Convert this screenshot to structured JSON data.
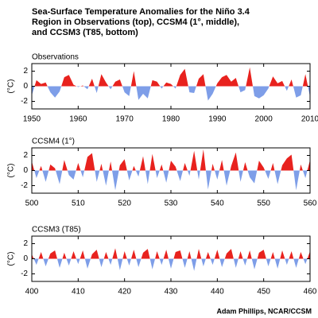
{
  "title": [
    "Sea-Surface Temperature Anomalies for the Niño 3.4",
    "Region in Observations (top), CCSM4 (1°, middle),",
    "and CCSM3 (T85, bottom)"
  ],
  "credit": "Adam Phillips, NCAR/CCSM",
  "chart_data": [
    {
      "type": "area",
      "subtitle": "Observations",
      "ylabel": "(°C)",
      "pos_color": "#e8221e",
      "neg_color": "#7e9ee8",
      "x": [
        1950,
        1951,
        1952,
        1953,
        1954,
        1955,
        1956,
        1957,
        1958,
        1959,
        1960,
        1961,
        1962,
        1963,
        1964,
        1965,
        1966,
        1967,
        1968,
        1969,
        1970,
        1971,
        1972,
        1973,
        1974,
        1975,
        1976,
        1977,
        1978,
        1979,
        1980,
        1981,
        1982,
        1983,
        1984,
        1985,
        1986,
        1987,
        1988,
        1989,
        1990,
        1991,
        1992,
        1993,
        1994,
        1995,
        1996,
        1997,
        1998,
        1999,
        2000,
        2001,
        2002,
        2003,
        2004,
        2005,
        2006,
        2007,
        2008,
        2009,
        2010
      ],
      "values": [
        -1.2,
        0.8,
        0.3,
        0.5,
        -0.8,
        -1.5,
        -0.7,
        1.2,
        1.5,
        0.2,
        -0.1,
        0.1,
        -0.4,
        1.0,
        -0.9,
        1.6,
        0.5,
        -0.4,
        0.6,
        0.9,
        -0.8,
        -1.3,
        2.0,
        -1.8,
        -1.0,
        -1.6,
        0.8,
        0.6,
        -0.3,
        0.5,
        0.3,
        -0.3,
        1.5,
        2.3,
        -0.8,
        -0.9,
        1.0,
        1.6,
        -1.9,
        -1.0,
        0.4,
        1.2,
        1.5,
        0.6,
        1.1,
        -0.8,
        -0.5,
        2.5,
        -1.3,
        -1.6,
        -1.2,
        -0.3,
        1.3,
        0.4,
        0.7,
        -0.6,
        0.9,
        -1.5,
        -1.2,
        1.6,
        -1.4
      ],
      "xlim": [
        1950,
        2010
      ],
      "xticks": [
        1950,
        1960,
        1970,
        1980,
        1990,
        2000,
        2010
      ],
      "ylim": [
        -3,
        3
      ],
      "yticks": [
        -2,
        0,
        2
      ]
    },
    {
      "type": "area",
      "subtitle": "CCSM4 (1°)",
      "ylabel": "(°C)",
      "pos_color": "#e8221e",
      "neg_color": "#7e9ee8",
      "x": [
        500,
        501,
        502,
        503,
        504,
        505,
        506,
        507,
        508,
        509,
        510,
        511,
        512,
        513,
        514,
        515,
        516,
        517,
        518,
        519,
        520,
        521,
        522,
        523,
        524,
        525,
        526,
        527,
        528,
        529,
        530,
        531,
        532,
        533,
        534,
        535,
        536,
        537,
        538,
        539,
        540,
        541,
        542,
        543,
        544,
        545,
        546,
        547,
        548,
        549,
        550,
        551,
        552,
        553,
        554,
        555,
        556,
        557,
        558,
        559,
        560
      ],
      "values": [
        1.2,
        -1.0,
        0.6,
        -1.5,
        0.8,
        0.3,
        -1.8,
        1.4,
        -0.6,
        -1.2,
        1.0,
        -0.9,
        1.8,
        2.3,
        -1.5,
        0.9,
        -2.0,
        1.2,
        -2.6,
        0.7,
        1.5,
        -1.3,
        0.6,
        -0.8,
        1.9,
        -1.8,
        2.2,
        -1.0,
        0.8,
        -1.6,
        1.3,
        0.5,
        -1.4,
        1.0,
        -0.7,
        2.6,
        -1.2,
        2.8,
        -2.5,
        0.9,
        -1.2,
        1.4,
        -2.0,
        0.6,
        2.4,
        -1.5,
        1.1,
        -0.9,
        -1.7,
        1.3,
        0.4,
        -1.1,
        1.0,
        -1.8,
        0.7,
        1.6,
        2.1,
        -2.6,
        0.8,
        -1.0,
        1.4
      ],
      "xlim": [
        500,
        560
      ],
      "xticks": [
        500,
        510,
        520,
        530,
        540,
        550,
        560
      ],
      "ylim": [
        -3,
        3
      ],
      "yticks": [
        -2,
        0,
        2
      ]
    },
    {
      "type": "area",
      "subtitle": "CCSM3 (T85)",
      "ylabel": "(°C)",
      "pos_color": "#e8221e",
      "neg_color": "#7e9ee8",
      "x": [
        400,
        401,
        402,
        403,
        404,
        405,
        406,
        407,
        408,
        409,
        410,
        411,
        412,
        413,
        414,
        415,
        416,
        417,
        418,
        419,
        420,
        421,
        422,
        423,
        424,
        425,
        426,
        427,
        428,
        429,
        430,
        431,
        432,
        433,
        434,
        435,
        436,
        437,
        438,
        439,
        440,
        441,
        442,
        443,
        444,
        445,
        446,
        447,
        448,
        449,
        450,
        451,
        452,
        453,
        454,
        455,
        456,
        457,
        458,
        459,
        460
      ],
      "values": [
        0.6,
        -0.8,
        0.9,
        -1.0,
        0.7,
        1.1,
        -1.2,
        0.8,
        -0.9,
        1.0,
        -0.7,
        1.1,
        -1.3,
        0.6,
        1.2,
        -1.1,
        0.9,
        -0.8,
        1.4,
        -1.5,
        1.0,
        -0.9,
        1.2,
        -1.1,
        0.8,
        1.3,
        -1.4,
        1.0,
        -0.8,
        1.2,
        -1.3,
        0.9,
        1.1,
        -1.2,
        1.0,
        -1.6,
        1.3,
        -1.0,
        0.9,
        -0.8,
        1.2,
        -1.1,
        0.7,
        1.3,
        -1.2,
        1.0,
        -0.9,
        1.1,
        -1.4,
        0.8,
        1.2,
        -1.0,
        0.9,
        -1.3,
        1.1,
        -0.8,
        1.0,
        -1.2,
        0.9,
        -0.7,
        1.0
      ],
      "xlim": [
        400,
        460
      ],
      "xticks": [
        400,
        410,
        420,
        430,
        440,
        450,
        460
      ],
      "ylim": [
        -3,
        3
      ],
      "yticks": [
        -2,
        0,
        2
      ]
    }
  ]
}
